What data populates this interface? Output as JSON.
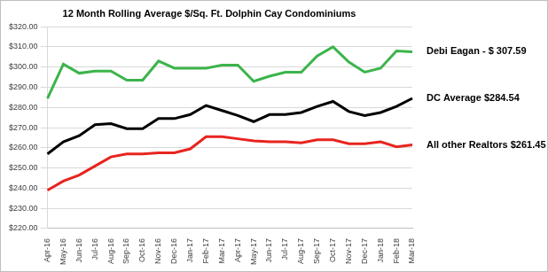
{
  "chart_data": {
    "type": "line",
    "title": "12 Month Rolling Average $/Sq. Ft. Dolphin Cay Condominiums",
    "categories": [
      "Apr-16",
      "May-16",
      "Jun-16",
      "Jul-16",
      "Aug-16",
      "Sep-16",
      "Oct-16",
      "Nov-16",
      "Dec-16",
      "Jan-17",
      "Feb-17",
      "Mar-17",
      "Apr-17",
      "May-17",
      "Jun-17",
      "Jul-17",
      "Aug-17",
      "Sep-17",
      "Oct-17",
      "Nov-17",
      "Dec-17",
      "Jan-18",
      "Feb-18",
      "Mar-18"
    ],
    "series": [
      {
        "name": "Debi Eagan - $ 307.59",
        "color": "#3cb44b",
        "values": [
          284.5,
          301.5,
          297,
          298,
          298,
          293.5,
          293.5,
          303,
          299.5,
          299.5,
          299.5,
          301,
          301,
          293,
          295.5,
          297.5,
          297.5,
          305.5,
          310,
          302.5,
          297.5,
          299.5,
          308,
          307.59
        ]
      },
      {
        "name": "DC Average $284.54",
        "color": "#000000",
        "values": [
          257,
          263,
          266,
          271.5,
          272,
          269.5,
          269.5,
          274.5,
          274.5,
          276.5,
          281,
          278.5,
          276,
          273,
          276.5,
          276.5,
          277.5,
          280.5,
          283,
          278,
          276,
          277.5,
          280.5,
          284.54
        ]
      },
      {
        "name": "All other Realtors $261.45",
        "color": "#e8241f",
        "values": [
          239,
          243.5,
          246.5,
          251,
          255.5,
          257,
          257,
          257.5,
          257.5,
          259.5,
          265.5,
          265.5,
          264.5,
          263.5,
          263,
          263,
          262.5,
          264,
          264,
          262,
          262,
          263,
          260.5,
          261.45
        ]
      }
    ],
    "ylim": [
      220,
      320
    ],
    "yticks": [
      {
        "value": 220,
        "label": "$220.00"
      },
      {
        "value": 230,
        "label": "$230.00"
      },
      {
        "value": 240,
        "label": "$240.00"
      },
      {
        "value": 250,
        "label": "$250.00"
      },
      {
        "value": 260,
        "label": "$260.00"
      },
      {
        "value": 270,
        "label": "$270.00"
      },
      {
        "value": 280,
        "label": "$280.00"
      },
      {
        "value": 290,
        "label": "$290.00"
      },
      {
        "value": 300,
        "label": "$300.00"
      },
      {
        "value": 310,
        "label": "$310.00"
      },
      {
        "value": 320,
        "label": "$320.00"
      }
    ],
    "grid": true
  }
}
